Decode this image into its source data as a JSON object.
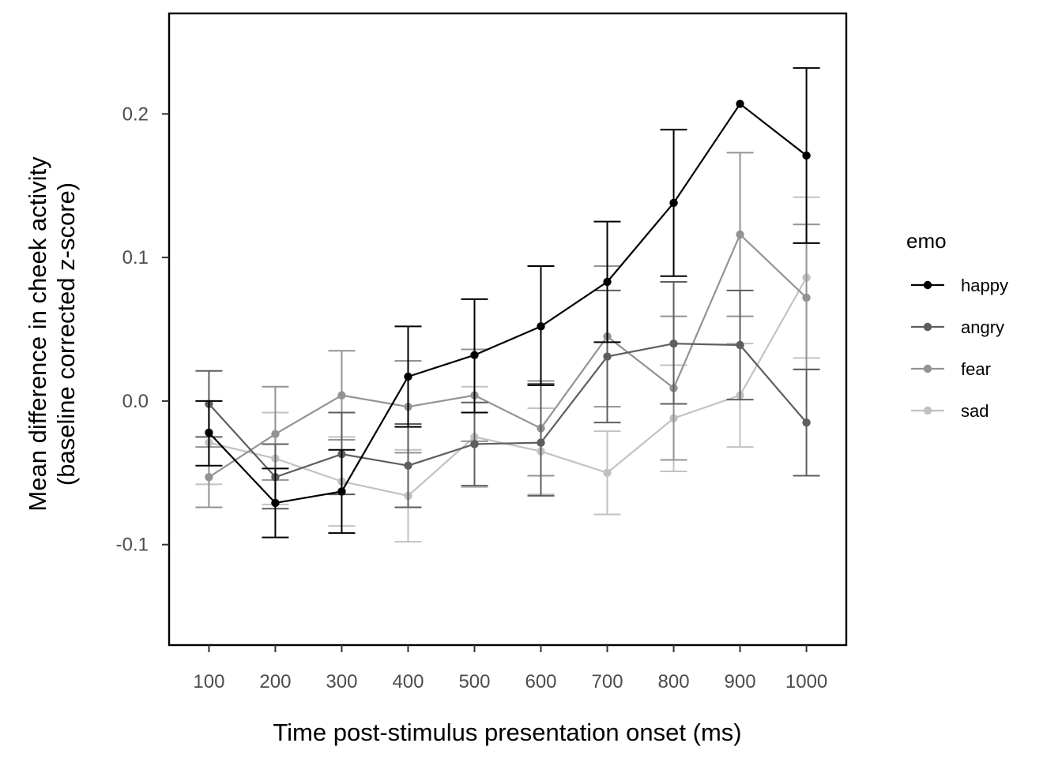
{
  "chart_data": {
    "type": "line",
    "xlabel": "Time post-stimulus presentation onset (ms)",
    "ylabel_lines": [
      "Mean difference in cheek activity",
      "(baseline corrected z-score)"
    ],
    "x": [
      100,
      200,
      300,
      400,
      500,
      600,
      700,
      800,
      900,
      1000
    ],
    "x_ticks": [
      "100",
      "200",
      "300",
      "400",
      "500",
      "600",
      "700",
      "800",
      "900",
      "1000"
    ],
    "xlim": [
      40,
      1060
    ],
    "ylim": [
      -0.17,
      0.27
    ],
    "y_ticks": [
      {
        "value": 0.2,
        "label": "0.2"
      },
      {
        "value": 0.1,
        "label": "0.1"
      },
      {
        "value": 0.0,
        "label": "0.0"
      },
      {
        "value": -0.1,
        "label": "-0.1"
      }
    ],
    "grid": false,
    "legend": {
      "title": "emo",
      "position": "right"
    },
    "series": [
      {
        "name": "happy",
        "color": "#000000",
        "values": [
          -0.022,
          -0.071,
          -0.063,
          0.017,
          0.032,
          0.052,
          0.083,
          0.138,
          0.207,
          0.171
        ],
        "lower": [
          -0.045,
          -0.095,
          -0.092,
          -0.018,
          -0.008,
          0.011,
          0.041,
          0.087,
          0.207,
          0.11
        ],
        "upper": [
          0.0,
          -0.047,
          -0.034,
          0.052,
          0.071,
          0.094,
          0.125,
          0.189,
          0.207,
          0.232
        ]
      },
      {
        "name": "angry",
        "color": "#5e5e5e",
        "values": [
          -0.002,
          -0.053,
          -0.037,
          -0.045,
          -0.03,
          -0.029,
          0.031,
          0.04,
          0.039,
          -0.015
        ],
        "lower": [
          -0.025,
          -0.075,
          -0.065,
          -0.074,
          -0.059,
          -0.066,
          -0.015,
          -0.002,
          0.001,
          -0.052
        ],
        "upper": [
          0.021,
          -0.03,
          -0.008,
          -0.016,
          -0.001,
          0.012,
          0.077,
          0.083,
          0.077,
          0.022
        ]
      },
      {
        "name": "fear",
        "color": "#939393",
        "values": [
          -0.053,
          -0.023,
          0.004,
          -0.004,
          0.004,
          -0.019,
          0.045,
          0.009,
          0.116,
          0.072
        ],
        "lower": [
          -0.074,
          -0.055,
          -0.027,
          -0.036,
          -0.028,
          -0.052,
          -0.004,
          -0.041,
          0.059,
          0.022
        ],
        "upper": [
          -0.032,
          0.01,
          0.035,
          0.028,
          0.036,
          0.014,
          0.094,
          0.059,
          0.173,
          0.123
        ]
      },
      {
        "name": "sad",
        "color": "#c2c2c2",
        "values": [
          -0.029,
          -0.04,
          -0.056,
          -0.066,
          -0.025,
          -0.035,
          -0.05,
          -0.012,
          0.004,
          0.086
        ],
        "lower": [
          -0.058,
          -0.072,
          -0.087,
          -0.098,
          -0.06,
          -0.065,
          -0.079,
          -0.049,
          -0.032,
          0.03
        ],
        "upper": [
          0.0,
          -0.008,
          -0.025,
          -0.034,
          0.01,
          -0.005,
          -0.021,
          0.025,
          0.04,
          0.142
        ]
      }
    ]
  }
}
